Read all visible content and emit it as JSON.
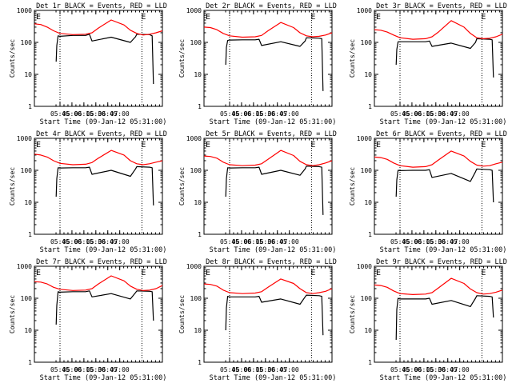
{
  "figure": {
    "tick_labels_x": [
      "05:45",
      "06:00",
      "06:15",
      "06:30",
      "06:45",
      "07:00"
    ],
    "tick_labels_y": [
      "1",
      "10",
      "100",
      "1000"
    ],
    "ylabel": "Counts/sec",
    "xlabel": "Start Time (09-Jan-12 05:31:00)",
    "marker": "E",
    "colors": {
      "events": "#000000",
      "lld": "#ff0000",
      "axes": "#000000",
      "background": "#ffffff"
    }
  },
  "chart_data": [
    {
      "title": "Det 1r BLACK = Events, RED = LLD",
      "xlabel": "Start Time (09-Jan-12 05:31:00)",
      "ylabel": "Counts/sec",
      "type": "line",
      "xlim": [
        0,
        100
      ],
      "ylim": [
        1,
        1000
      ],
      "event_lines": [
        20,
        84
      ],
      "series": [
        {
          "name": "Events",
          "color": "#000000",
          "x": [
            17,
            17.5,
            18.5,
            20,
            30,
            40,
            43,
            45,
            60,
            75,
            79,
            80,
            90,
            92,
            93
          ],
          "y": [
            25,
            80,
            160,
            155,
            165,
            165,
            180,
            110,
            145,
            100,
            150,
            180,
            175,
            160,
            5
          ]
        },
        {
          "name": "LLD",
          "color": "#ff0000",
          "x": [
            0,
            5,
            10,
            15,
            20,
            30,
            40,
            45,
            50,
            60,
            70,
            75,
            80,
            85,
            90,
            95,
            100
          ],
          "y": [
            380,
            360,
            300,
            230,
            190,
            175,
            180,
            200,
            280,
            500,
            350,
            240,
            190,
            170,
            180,
            200,
            230
          ]
        }
      ]
    },
    {
      "title": "Det 2r BLACK = Events, RED = LLD",
      "xlabel": "Start Time (09-Jan-12 05:31:00)",
      "ylabel": "Counts/sec",
      "type": "line",
      "xlim": [
        0,
        100
      ],
      "ylim": [
        1,
        1000
      ],
      "event_lines": [
        20,
        84
      ],
      "series": [
        {
          "name": "Events",
          "color": "#000000",
          "x": [
            17,
            17.5,
            18.5,
            20,
            30,
            40,
            43,
            45,
            60,
            75,
            79,
            80,
            90,
            92,
            93
          ],
          "y": [
            20,
            70,
            115,
            118,
            120,
            120,
            125,
            80,
            105,
            75,
            110,
            140,
            135,
            130,
            3
          ]
        },
        {
          "name": "LLD",
          "color": "#ff0000",
          "x": [
            0,
            5,
            10,
            15,
            20,
            30,
            40,
            45,
            50,
            60,
            70,
            75,
            80,
            85,
            90,
            95,
            100
          ],
          "y": [
            300,
            290,
            250,
            190,
            160,
            145,
            150,
            165,
            230,
            420,
            290,
            200,
            160,
            150,
            155,
            170,
            200
          ]
        }
      ]
    },
    {
      "title": "Det 3r BLACK = Events, RED = LLD",
      "xlabel": "Start Time (09-Jan-12 05:31:00)",
      "ylabel": "Counts/sec",
      "type": "line",
      "xlim": [
        0,
        100
      ],
      "ylim": [
        1,
        1000
      ],
      "event_lines": [
        20,
        84
      ],
      "series": [
        {
          "name": "Events",
          "color": "#000000",
          "x": [
            17,
            17.5,
            18.5,
            20,
            30,
            40,
            43,
            45,
            60,
            75,
            79,
            80,
            90,
            92,
            93
          ],
          "y": [
            20,
            60,
            105,
            105,
            105,
            105,
            110,
            75,
            95,
            65,
            100,
            130,
            125,
            120,
            8
          ]
        },
        {
          "name": "LLD",
          "color": "#ff0000",
          "x": [
            0,
            5,
            10,
            15,
            20,
            30,
            40,
            45,
            50,
            60,
            70,
            75,
            80,
            85,
            90,
            95,
            100
          ],
          "y": [
            250,
            240,
            210,
            170,
            140,
            125,
            130,
            150,
            210,
            480,
            300,
            190,
            140,
            130,
            135,
            150,
            180
          ]
        }
      ]
    },
    {
      "title": "Det 4r BLACK = Events, RED = LLD",
      "xlabel": "Start Time (09-Jan-12 05:31:00)",
      "ylabel": "Counts/sec",
      "type": "line",
      "xlim": [
        0,
        100
      ],
      "ylim": [
        1,
        1000
      ],
      "event_lines": [
        20,
        84
      ],
      "series": [
        {
          "name": "Events",
          "color": "#000000",
          "x": [
            17,
            17.5,
            18.5,
            20,
            30,
            40,
            43,
            45,
            60,
            75,
            79,
            80,
            90,
            92,
            93
          ],
          "y": [
            15,
            55,
            120,
            118,
            120,
            120,
            125,
            75,
            100,
            65,
            110,
            130,
            125,
            120,
            8
          ]
        },
        {
          "name": "LLD",
          "color": "#ff0000",
          "x": [
            0,
            5,
            10,
            15,
            20,
            30,
            40,
            45,
            50,
            60,
            70,
            75,
            80,
            85,
            90,
            95,
            100
          ],
          "y": [
            320,
            300,
            260,
            200,
            165,
            150,
            155,
            175,
            240,
            420,
            300,
            200,
            160,
            150,
            160,
            180,
            200
          ]
        }
      ]
    },
    {
      "title": "Det 5r BLACK = Events, RED = LLD",
      "xlabel": "Start Time (09-Jan-12 05:31:00)",
      "ylabel": "Counts/sec",
      "type": "line",
      "xlim": [
        0,
        100
      ],
      "ylim": [
        1,
        1000
      ],
      "event_lines": [
        20,
        84
      ],
      "series": [
        {
          "name": "Events",
          "color": "#000000",
          "x": [
            17,
            17.5,
            18.5,
            20,
            30,
            40,
            43,
            45,
            60,
            75,
            79,
            80,
            90,
            92,
            93
          ],
          "y": [
            15,
            55,
            120,
            118,
            120,
            120,
            125,
            75,
            100,
            70,
            110,
            135,
            130,
            125,
            4
          ]
        },
        {
          "name": "LLD",
          "color": "#ff0000",
          "x": [
            0,
            5,
            10,
            15,
            20,
            30,
            40,
            45,
            50,
            60,
            70,
            75,
            80,
            85,
            90,
            95,
            100
          ],
          "y": [
            280,
            270,
            240,
            180,
            150,
            140,
            145,
            160,
            220,
            420,
            290,
            190,
            150,
            140,
            150,
            170,
            200
          ]
        }
      ]
    },
    {
      "title": "Det 6r BLACK = Events, RED = LLD",
      "xlabel": "Start Time (09-Jan-12 05:31:00)",
      "ylabel": "Counts/sec",
      "type": "line",
      "xlim": [
        0,
        100
      ],
      "ylim": [
        1,
        1000
      ],
      "event_lines": [
        20,
        84
      ],
      "series": [
        {
          "name": "Events",
          "color": "#000000",
          "x": [
            17,
            17.5,
            18.5,
            20,
            30,
            40,
            43,
            45,
            60,
            75,
            79,
            80,
            90,
            92,
            93
          ],
          "y": [
            15,
            50,
            100,
            98,
            100,
            100,
            105,
            60,
            80,
            45,
            90,
            110,
            105,
            100,
            10
          ]
        },
        {
          "name": "LLD",
          "color": "#ff0000",
          "x": [
            0,
            5,
            10,
            15,
            20,
            30,
            40,
            45,
            50,
            60,
            70,
            75,
            80,
            85,
            90,
            95,
            100
          ],
          "y": [
            260,
            250,
            220,
            170,
            140,
            125,
            130,
            150,
            210,
            400,
            280,
            190,
            145,
            135,
            140,
            160,
            180
          ]
        }
      ]
    },
    {
      "title": "Det 7r BLACK = Events, RED = LLD",
      "xlabel": "Start Time (09-Jan-12 05:31:00)",
      "ylabel": "Counts/sec",
      "type": "line",
      "xlim": [
        0,
        100
      ],
      "ylim": [
        1,
        1000
      ],
      "event_lines": [
        20,
        84
      ],
      "series": [
        {
          "name": "Events",
          "color": "#000000",
          "x": [
            17,
            17.5,
            18.5,
            20,
            30,
            40,
            43,
            45,
            60,
            75,
            79,
            80,
            90,
            92,
            93
          ],
          "y": [
            15,
            60,
            160,
            155,
            160,
            160,
            170,
            110,
            140,
            95,
            150,
            170,
            165,
            160,
            20
          ]
        },
        {
          "name": "LLD",
          "color": "#ff0000",
          "x": [
            0,
            5,
            10,
            15,
            20,
            30,
            40,
            45,
            50,
            60,
            70,
            75,
            80,
            85,
            90,
            95,
            100
          ],
          "y": [
            330,
            320,
            280,
            220,
            190,
            175,
            180,
            200,
            280,
            500,
            350,
            240,
            190,
            175,
            180,
            200,
            250
          ]
        }
      ]
    },
    {
      "title": "Det 8r BLACK = Events, RED = LLD",
      "xlabel": "Start Time (09-Jan-12 05:31:00)",
      "ylabel": "Counts/sec",
      "type": "line",
      "xlim": [
        0,
        100
      ],
      "ylim": [
        1,
        1000
      ],
      "event_lines": [
        20,
        84
      ],
      "series": [
        {
          "name": "Events",
          "color": "#000000",
          "x": [
            17,
            17.5,
            18.5,
            20,
            30,
            40,
            43,
            45,
            60,
            75,
            79,
            80,
            90,
            92,
            93
          ],
          "y": [
            10,
            50,
            115,
            110,
            110,
            110,
            115,
            75,
            95,
            65,
            110,
            125,
            120,
            115,
            7
          ]
        },
        {
          "name": "LLD",
          "color": "#ff0000",
          "x": [
            0,
            5,
            10,
            15,
            20,
            30,
            40,
            45,
            50,
            60,
            70,
            75,
            80,
            85,
            90,
            95,
            100
          ],
          "y": [
            280,
            270,
            240,
            180,
            150,
            140,
            145,
            160,
            220,
            400,
            290,
            200,
            150,
            140,
            150,
            165,
            200
          ]
        }
      ]
    },
    {
      "title": "Det 9r BLACK = Events, RED = LLD",
      "xlabel": "Start Time (09-Jan-12 05:31:00)",
      "ylabel": "Counts/sec",
      "type": "line",
      "xlim": [
        0,
        100
      ],
      "ylim": [
        1,
        1000
      ],
      "event_lines": [
        20,
        84
      ],
      "series": [
        {
          "name": "Events",
          "color": "#000000",
          "x": [
            17,
            17.5,
            18.5,
            20,
            30,
            40,
            43,
            45,
            60,
            75,
            79,
            80,
            90,
            92,
            93
          ],
          "y": [
            5,
            45,
            100,
            95,
            95,
            95,
            100,
            65,
            85,
            55,
            100,
            120,
            115,
            110,
            25
          ]
        },
        {
          "name": "LLD",
          "color": "#ff0000",
          "x": [
            0,
            5,
            10,
            15,
            20,
            30,
            40,
            45,
            50,
            60,
            70,
            75,
            80,
            85,
            90,
            95,
            100
          ],
          "y": [
            260,
            250,
            220,
            170,
            140,
            130,
            135,
            150,
            210,
            420,
            290,
            195,
            150,
            135,
            140,
            155,
            180
          ]
        }
      ]
    }
  ]
}
